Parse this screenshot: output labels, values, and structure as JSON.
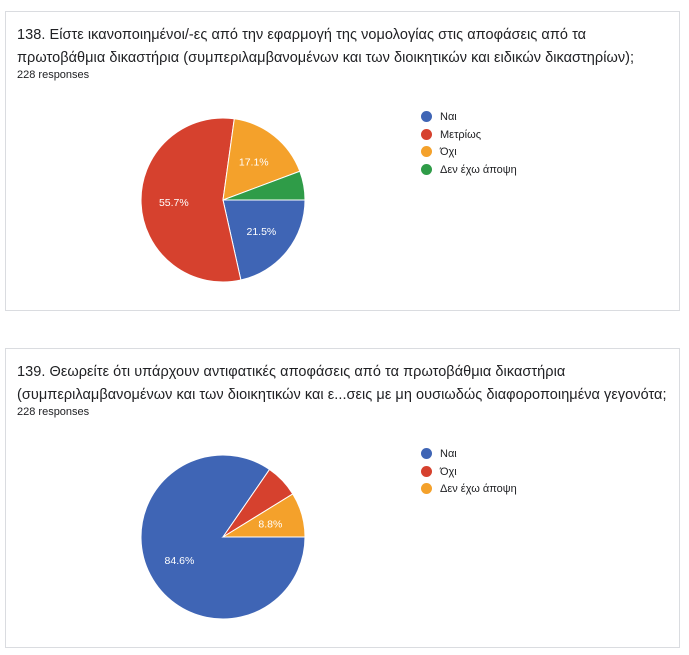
{
  "questions": [
    {
      "title": "138. Είστε ικανοποιημένοι/-ες από την εφαρμογή της νομολογίας στις αποφάσεις από τα πρωτοβάθμια δικαστήρια (συμπεριλαμβανομένων και των διοικητικών και ειδικών δικαστηρίων);",
      "responses": "228 responses"
    },
    {
      "title": "139. Θεωρείτε ότι υπάρχουν αντιφατικές αποφάσεις από τα πρωτοβάθμια δικαστήρια (συμπεριλαμβανομένων και των διοικητικών και ε...σεις με μη ουσιωδώς διαφοροποιημένα γεγονότα;",
      "responses": "228 responses"
    }
  ],
  "chart_data": [
    {
      "type": "pie",
      "labels": [
        "Ναι",
        "Μετρίως",
        "Όχι",
        "Δεν έχω άποψη"
      ],
      "values": [
        21.5,
        55.7,
        17.1,
        5.7
      ],
      "value_labels": [
        "21.5%",
        "55.7%",
        "17.1%",
        ""
      ],
      "colors": [
        "#3f65b5",
        "#d6412e",
        "#f4a12b",
        "#2f9c48"
      ],
      "legend_position": "right"
    },
    {
      "type": "pie",
      "labels": [
        "Ναι",
        "Όχι",
        "Δεν έχω άποψη"
      ],
      "values": [
        84.6,
        6.6,
        8.8
      ],
      "value_labels": [
        "84.6%",
        "",
        "8.8%"
      ],
      "colors": [
        "#3f65b5",
        "#d6412e",
        "#f4a12b"
      ],
      "legend_position": "right"
    }
  ]
}
